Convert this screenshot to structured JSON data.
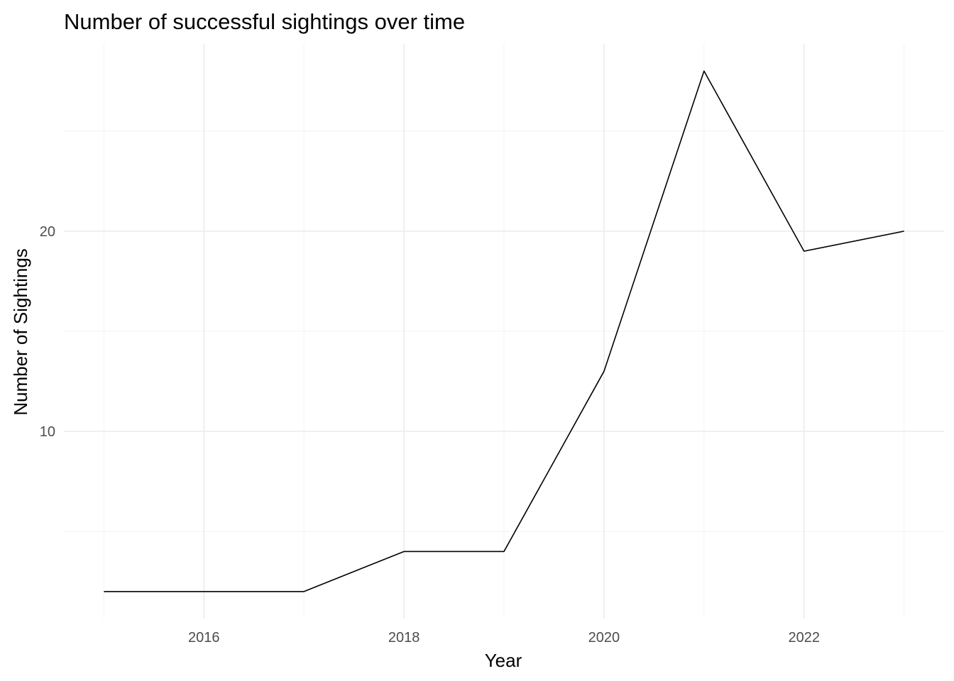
{
  "chart_data": {
    "type": "line",
    "title": "Number of successful sightings over time",
    "xlabel": "Year",
    "ylabel": "Number of Sightings",
    "x": [
      2015,
      2016,
      2017,
      2018,
      2019,
      2020,
      2021,
      2022,
      2023
    ],
    "series": [
      {
        "values": [
          2,
          2,
          2,
          4,
          4,
          13,
          28,
          19,
          20
        ],
        "color": "#000000"
      }
    ],
    "x_ticks": [
      2016,
      2018,
      2020,
      2022
    ],
    "y_ticks": [
      10,
      20
    ],
    "xlim": [
      2014.6,
      2023.4
    ],
    "ylim": [
      0.65,
      29.35
    ],
    "grid": true,
    "legend": "none"
  }
}
